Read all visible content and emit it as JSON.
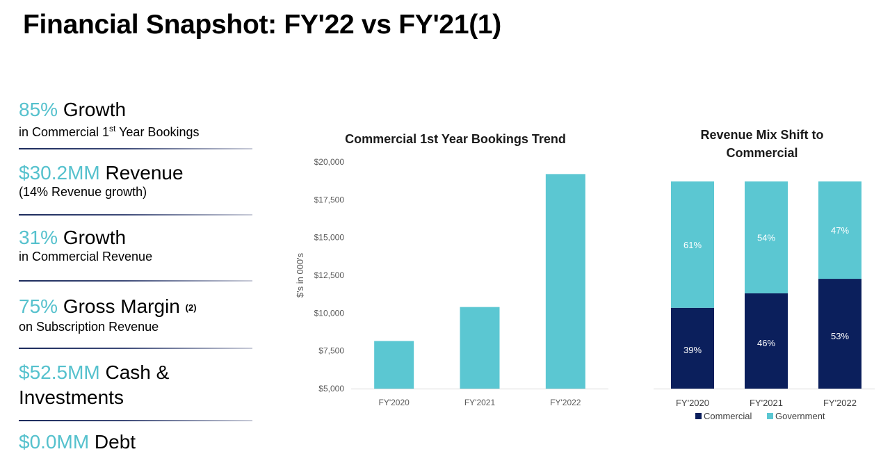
{
  "page": {
    "title": "Financial Snapshot: FY'22 vs FY'21(1)"
  },
  "metrics": [
    {
      "value": "85%",
      "label": " Growth",
      "sub": "in Commercial 1",
      "sub_sup": "st",
      "sub_tail": " Year Bookings"
    },
    {
      "value": "$30.2MM",
      "label": " Revenue",
      "sub": "(14% Revenue growth)"
    },
    {
      "value": "31%",
      "label": " Growth",
      "sub": "in Commercial Revenue"
    },
    {
      "value": "75%",
      "label": " Gross Margin ",
      "label_sup": "(2)",
      "sub": "on Subscription Revenue"
    },
    {
      "value": "$52.5MM",
      "label": " Cash &",
      "label_line2": "Investments"
    },
    {
      "value": "$0.0MM",
      "label": " Debt"
    }
  ],
  "colors": {
    "accent": "#55c1cd",
    "navy": "#0b1f5c",
    "divider": "#1b2a5c"
  },
  "chart_data": [
    {
      "type": "bar",
      "title": "Commercial 1st Year Bookings Trend",
      "ylabel": "$'s in 000's",
      "categories": [
        "FY'2020",
        "FY'2021",
        "FY'2022"
      ],
      "values": [
        8150,
        10400,
        19200
      ],
      "ylim": [
        5000,
        20000
      ],
      "yticks": [
        "$5,000",
        "$7,500",
        "$10,000",
        "$12,500",
        "$15,000",
        "$17,500",
        "$20,000"
      ],
      "ytick_values": [
        5000,
        7500,
        10000,
        12500,
        15000,
        17500,
        20000
      ],
      "grid": false,
      "color": "#5bc7d2"
    },
    {
      "type": "bar",
      "stacked": true,
      "title": "Revenue Mix Shift to",
      "title_line2": "Commercial",
      "categories": [
        "FY'2020",
        "FY'2021",
        "FY'2022"
      ],
      "series": [
        {
          "name": "Commercial",
          "values": [
            39,
            46,
            53
          ],
          "labels": [
            "39%",
            "46%",
            "53%"
          ],
          "color": "#0b1f5c"
        },
        {
          "name": "Government",
          "values": [
            61,
            54,
            47
          ],
          "labels": [
            "61%",
            "54%",
            "47%"
          ],
          "color": "#5bc7d2"
        }
      ],
      "ylim": [
        0,
        100
      ],
      "legend": "bottom"
    }
  ]
}
